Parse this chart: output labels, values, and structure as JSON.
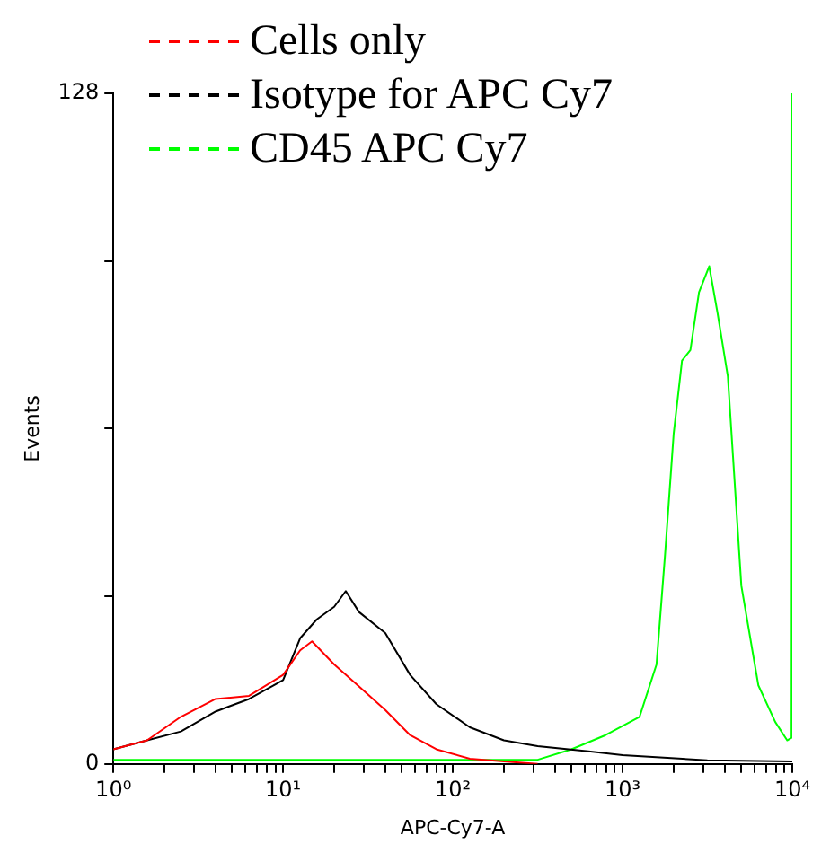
{
  "chart_data": {
    "type": "line",
    "xlabel": "APC-Cy7-A",
    "ylabel": "Events",
    "log": "x",
    "legend": "top",
    "grid": false,
    "marker": "none",
    "line_style": "solid",
    "xlim": [
      1,
      10000
    ],
    "xticks": [
      {
        "value": 1,
        "label": "10⁰"
      },
      {
        "value": 2,
        "label": null
      },
      {
        "value": 3,
        "label": null
      },
      {
        "value": 4,
        "label": null
      },
      {
        "value": 5,
        "label": null
      },
      {
        "value": 6,
        "label": null
      },
      {
        "value": 7,
        "label": null
      },
      {
        "value": 8,
        "label": null
      },
      {
        "value": 9,
        "label": null
      },
      {
        "value": 10,
        "label": "10¹"
      },
      {
        "value": 20,
        "label": null
      },
      {
        "value": 30,
        "label": null
      },
      {
        "value": 40,
        "label": null
      },
      {
        "value": 50,
        "label": null
      },
      {
        "value": 60,
        "label": null
      },
      {
        "value": 70,
        "label": null
      },
      {
        "value": 80,
        "label": null
      },
      {
        "value": 90,
        "label": null
      },
      {
        "value": 100,
        "label": "10²"
      },
      {
        "value": 200,
        "label": null
      },
      {
        "value": 300,
        "label": null
      },
      {
        "value": 400,
        "label": null
      },
      {
        "value": 500,
        "label": null
      },
      {
        "value": 600,
        "label": null
      },
      {
        "value": 700,
        "label": null
      },
      {
        "value": 800,
        "label": null
      },
      {
        "value": 900,
        "label": null
      },
      {
        "value": 1000,
        "label": "10³"
      },
      {
        "value": 2000,
        "label": null
      },
      {
        "value": 3000,
        "label": null
      },
      {
        "value": 4000,
        "label": null
      },
      {
        "value": 5000,
        "label": null
      },
      {
        "value": 6000,
        "label": null
      },
      {
        "value": 7000,
        "label": null
      },
      {
        "value": 8000,
        "label": null
      },
      {
        "value": 9000,
        "label": null
      },
      {
        "value": 10000,
        "label": "10⁴"
      }
    ],
    "ylim": [
      0,
      128
    ],
    "yticks": [
      0,
      {
        "value": 32,
        "label": null
      },
      {
        "value": 64,
        "label": null
      },
      {
        "value": 96,
        "label": null
      },
      128
    ],
    "series": [
      {
        "name": "Cells only",
        "color": "#ff0000",
        "x": [
          1,
          1.58,
          2.5,
          4,
          6.3,
          10,
          12.6,
          14.8,
          20,
          28,
          40,
          56,
          80,
          126,
          200,
          316
        ],
        "values": [
          2.8,
          4.5,
          9,
          12.4,
          13,
          17,
          21.7,
          23.4,
          19,
          14.8,
          10.3,
          5.5,
          2.8,
          1,
          0.5,
          0
        ]
      },
      {
        "name": "Isotype for APC Cy7",
        "color": "#000000",
        "x": [
          1,
          1.58,
          2.5,
          4,
          6.3,
          10,
          12.6,
          15.8,
          20,
          23.4,
          28,
          40,
          56,
          80,
          126,
          200,
          316,
          630,
          1000,
          3160,
          10000
        ],
        "values": [
          2.8,
          4.5,
          6.2,
          10,
          12.4,
          16,
          24,
          27.6,
          30,
          33,
          29,
          25,
          17,
          11.4,
          7,
          4.5,
          3.4,
          2.4,
          1.7,
          0.7,
          0.5
        ]
      },
      {
        "name": "CD45 APC Cy7",
        "color": "#00ff00",
        "x": [
          1,
          10,
          100,
          316,
          500,
          794,
          1260,
          1585,
          1780,
          2000,
          2240,
          2510,
          2820,
          3240,
          3630,
          4170,
          5010,
          6310,
          7940,
          9330,
          9900,
          10000
        ],
        "values": [
          0.8,
          0.8,
          0.8,
          0.8,
          2.8,
          5.5,
          9,
          19,
          40,
          63,
          77,
          79,
          90,
          95,
          86,
          74,
          34,
          15,
          8,
          4.5,
          5,
          128
        ]
      }
    ]
  }
}
